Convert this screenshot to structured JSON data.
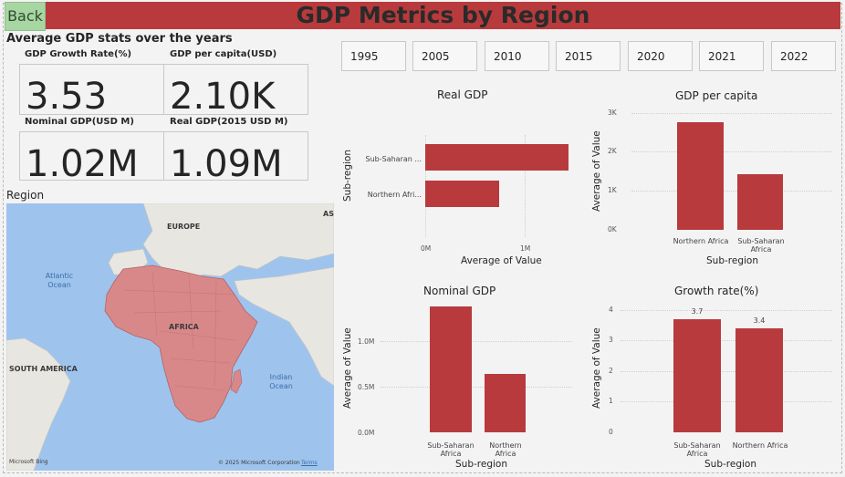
{
  "header": {
    "back_label": "Back",
    "title": "GDP Metrics by Region"
  },
  "stats": {
    "title": "Average GDP stats over the years",
    "cards": [
      {
        "label": "GDP Growth Rate(%)",
        "value": "3.53"
      },
      {
        "label": "GDP per capita(USD)",
        "value": "2.10K"
      },
      {
        "label": "Nominal GDP(USD M)",
        "value": "1.02M"
      },
      {
        "label": "Real GDP(2015 USD M)",
        "value": "1.09M"
      }
    ]
  },
  "region": {
    "title": "Region",
    "labels": {
      "europe": "EUROPE",
      "asia": "ASI",
      "africa": "AFRICA",
      "south_america": "SOUTH AMERICA",
      "atlantic": "Atlantic Ocean",
      "indian": "Indian Ocean"
    },
    "footer": {
      "bing": "Microsoft Bing",
      "copyright": "© 2025 Microsoft Corporation",
      "terms": "Terms"
    }
  },
  "years": [
    "1995",
    "2005",
    "2010",
    "2015",
    "2020",
    "2021",
    "2022"
  ],
  "colors": {
    "accent": "#b83a3c",
    "back_button": "#a7d6a3",
    "ocean": "#9ec4ee",
    "land": "#e8e6e1",
    "africa": "#d9888a"
  },
  "chart_data": [
    {
      "type": "bar",
      "orientation": "horizontal",
      "title": "Real GDP",
      "categories": [
        "Sub-Saharan ...",
        "Northern Afri..."
      ],
      "values": [
        1440000,
        740000
      ],
      "xlabel": "Average of Value",
      "ylabel": "Sub-region",
      "xticks": [
        "0M",
        "1M"
      ],
      "xlim": [
        0,
        1600000
      ]
    },
    {
      "type": "bar",
      "title": "GDP per capita",
      "categories": [
        "Northern Africa",
        "Sub-Saharan Africa"
      ],
      "values": [
        2770,
        1440
      ],
      "xlabel": "Sub-region",
      "ylabel": "Average of Value",
      "yticks": [
        "0K",
        "1K",
        "2K",
        "3K"
      ],
      "ylim": [
        0,
        3000
      ]
    },
    {
      "type": "bar",
      "title": "Nominal GDP",
      "categories": [
        "Sub-Saharan Africa",
        "Northern Africa"
      ],
      "values": [
        1380000,
        640000
      ],
      "xlabel": "Sub-region",
      "ylabel": "Average of Value",
      "yticks": [
        "0.0M",
        "0.5M",
        "1.0M"
      ],
      "ylim": [
        0,
        1400000
      ]
    },
    {
      "type": "bar",
      "title": "Growth rate(%)",
      "categories": [
        "Sub-Saharan Africa",
        "Northern Africa"
      ],
      "values": [
        3.7,
        3.4
      ],
      "data_labels": [
        "3.7",
        "3.4"
      ],
      "xlabel": "Sub-region",
      "ylabel": "Average of Value",
      "yticks": [
        "0",
        "1",
        "2",
        "3",
        "4"
      ],
      "ylim": [
        0,
        4
      ]
    }
  ]
}
